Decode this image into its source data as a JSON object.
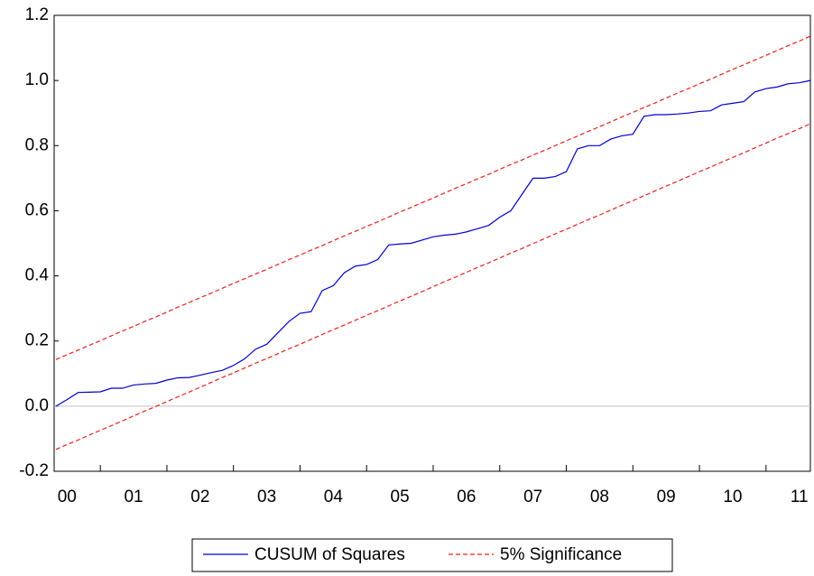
{
  "chart_data": {
    "type": "line",
    "categories": [
      null,
      "00",
      null,
      null,
      null,
      null,
      null,
      "01",
      null,
      null,
      null,
      null,
      null,
      "02",
      null,
      null,
      null,
      null,
      null,
      "03",
      null,
      null,
      null,
      null,
      null,
      "04",
      null,
      null,
      null,
      null,
      null,
      "05",
      null,
      null,
      null,
      null,
      null,
      "06",
      null,
      null,
      null,
      null,
      null,
      "07",
      null,
      null,
      null,
      null,
      null,
      "08",
      null,
      null,
      null,
      null,
      null,
      "09",
      null,
      null,
      null,
      null,
      null,
      "10",
      null,
      null,
      null,
      null,
      null,
      "11",
      null
    ],
    "series": [
      {
        "name": "CUSUM of Squares",
        "color": "#0000cc",
        "dashed": false,
        "values": [
          0.0,
          0.02,
          0.042,
          0.043,
          0.044,
          0.055,
          0.055,
          0.065,
          0.068,
          0.07,
          0.08,
          0.087,
          0.088,
          0.095,
          0.103,
          0.11,
          0.125,
          0.145,
          0.175,
          0.19,
          0.225,
          0.26,
          0.285,
          0.29,
          0.355,
          0.37,
          0.41,
          0.43,
          0.435,
          0.45,
          0.495,
          0.498,
          0.5,
          0.51,
          0.52,
          0.525,
          0.528,
          0.535,
          0.545,
          0.555,
          0.58,
          0.6,
          0.65,
          0.7,
          0.7,
          0.705,
          0.72,
          0.79,
          0.8,
          0.8,
          0.82,
          0.83,
          0.835,
          0.89,
          0.895,
          0.895,
          0.897,
          0.9,
          0.905,
          0.907,
          0.925,
          0.93,
          0.935,
          0.965,
          0.975,
          0.98,
          0.99,
          0.993,
          1.0
        ]
      },
      {
        "name": "5% Significance",
        "color": "#e8201c",
        "dashed": true,
        "values": [
          0.143,
          0.158,
          0.172,
          0.187,
          0.201,
          0.216,
          0.231,
          0.245,
          0.26,
          0.274,
          0.289,
          0.304,
          0.318,
          0.333,
          0.347,
          0.362,
          0.377,
          0.391,
          0.406,
          0.42,
          0.435,
          0.45,
          0.464,
          0.479,
          0.493,
          0.508,
          0.523,
          0.537,
          0.552,
          0.566,
          0.581,
          0.596,
          0.61,
          0.625,
          0.639,
          0.654,
          0.669,
          0.683,
          0.698,
          0.712,
          0.727,
          0.742,
          0.756,
          0.771,
          0.785,
          0.8,
          0.815,
          0.829,
          0.844,
          0.858,
          0.873,
          0.888,
          0.902,
          0.917,
          0.931,
          0.946,
          0.961,
          0.975,
          0.99,
          1.004,
          1.019,
          1.034,
          1.048,
          1.063,
          1.077,
          1.092,
          1.107,
          1.121,
          1.136
        ],
        "lower": [
          -0.133,
          -0.118,
          -0.104,
          -0.089,
          -0.074,
          -0.06,
          -0.045,
          -0.03,
          -0.015,
          -0.001,
          0.014,
          0.029,
          0.043,
          0.058,
          0.073,
          0.088,
          0.102,
          0.117,
          0.132,
          0.146,
          0.161,
          0.176,
          0.19,
          0.205,
          0.22,
          0.235,
          0.249,
          0.264,
          0.279,
          0.293,
          0.308,
          0.323,
          0.337,
          0.352,
          0.367,
          0.382,
          0.396,
          0.411,
          0.426,
          0.44,
          0.455,
          0.47,
          0.484,
          0.499,
          0.514,
          0.529,
          0.543,
          0.558,
          0.573,
          0.587,
          0.602,
          0.617,
          0.631,
          0.646,
          0.661,
          0.676,
          0.69,
          0.705,
          0.72,
          0.734,
          0.749,
          0.764,
          0.778,
          0.793,
          0.808,
          0.823,
          0.837,
          0.852,
          0.867
        ]
      }
    ],
    "ylim": [
      -0.2,
      1.2
    ],
    "yticks": [
      -0.2,
      {
        "value": 0,
        "label": "0.0"
      },
      0.2,
      0.4,
      0.6,
      0.8,
      {
        "value": 1,
        "label": "1.0"
      },
      1.2
    ],
    "zero_line": true,
    "legend": "bottom"
  }
}
